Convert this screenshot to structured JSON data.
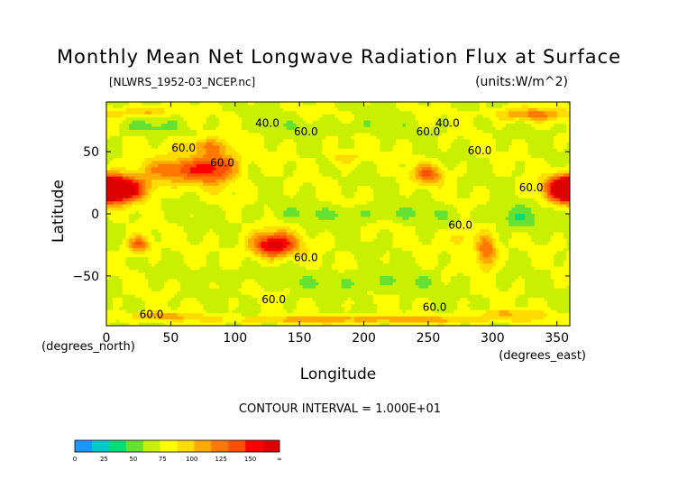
{
  "chart_data": {
    "type": "heatmap",
    "title": "Monthly Mean Net Longwave Radiation Flux at Surface",
    "file_label": "[NLWRS_1952-03_NCEP.nc]",
    "units_label": "(units:W/m^2)",
    "xlabel": "Longitude",
    "ylabel": "Latitude",
    "x_unit_label": "(degrees_east)",
    "y_unit_label": "(degrees_north)",
    "xlim": [
      0,
      360
    ],
    "ylim": [
      -90,
      90
    ],
    "x_ticks": [
      {
        "value": 0,
        "label": "0"
      },
      {
        "value": 50,
        "label": "50"
      },
      {
        "value": 100,
        "label": "100"
      },
      {
        "value": 150,
        "label": "150"
      },
      {
        "value": 200,
        "label": "200"
      },
      {
        "value": 250,
        "label": "250"
      },
      {
        "value": 300,
        "label": "300"
      },
      {
        "value": 350,
        "label": "350"
      }
    ],
    "y_ticks": [
      {
        "value": 50,
        "label": "50"
      },
      {
        "value": 0,
        "label": "0"
      },
      {
        "value": -50,
        "label": "−50"
      }
    ],
    "contour_interval_text": "CONTOUR INTERVAL = 1.000E+01",
    "contour_labels": [
      {
        "lon": 125,
        "lat": 70,
        "text": "40.0"
      },
      {
        "lon": 265,
        "lat": 70,
        "text": "40.0"
      },
      {
        "lon": 250,
        "lat": 63,
        "text": "60.0"
      },
      {
        "lon": 155,
        "lat": 63,
        "text": "60.0"
      },
      {
        "lon": 60,
        "lat": 50,
        "text": "60.0"
      },
      {
        "lon": 90,
        "lat": 38,
        "text": "60.0"
      },
      {
        "lon": 290,
        "lat": 48,
        "text": "60.0"
      },
      {
        "lon": 330,
        "lat": 18,
        "text": "60.0"
      },
      {
        "lon": 275,
        "lat": -12,
        "text": "60.0"
      },
      {
        "lon": 155,
        "lat": -38,
        "text": "60.0"
      },
      {
        "lon": 130,
        "lat": -72,
        "text": "60.0"
      },
      {
        "lon": 255,
        "lat": -78,
        "text": "60.0"
      },
      {
        "lon": 35,
        "lat": -84,
        "text": "60.0"
      }
    ],
    "colorbar": {
      "levels": [
        0,
        25,
        50,
        75,
        100,
        125,
        150
      ],
      "tick_labels": [
        "0",
        "25",
        "50",
        "75",
        "100",
        "125",
        "150",
        "∞"
      ],
      "colors": [
        "#1e96ff",
        "#00c8c8",
        "#00dc78",
        "#64e132",
        "#c8f000",
        "#ffff00",
        "#ffdc00",
        "#ffaa00",
        "#ff7800",
        "#ff5000",
        "#ff0000",
        "#dc0000"
      ]
    },
    "field": {
      "background": 62,
      "features": [
        {
          "lon": 10,
          "lat": 20,
          "w": 22,
          "h": 10,
          "amp": 95
        },
        {
          "lon": 358,
          "lat": 20,
          "w": 15,
          "h": 10,
          "amp": 90
        },
        {
          "lon": 55,
          "lat": 35,
          "w": 30,
          "h": 10,
          "amp": 45
        },
        {
          "lon": 85,
          "lat": 38,
          "w": 18,
          "h": 14,
          "amp": 55
        },
        {
          "lon": 75,
          "lat": 55,
          "w": 20,
          "h": 6,
          "amp": 30
        },
        {
          "lon": 130,
          "lat": -25,
          "w": 18,
          "h": 10,
          "amp": 85
        },
        {
          "lon": 25,
          "lat": -25,
          "w": 9,
          "h": 7,
          "amp": 55
        },
        {
          "lon": 250,
          "lat": 32,
          "w": 12,
          "h": 8,
          "amp": 50
        },
        {
          "lon": 185,
          "lat": 45,
          "w": 12,
          "h": 6,
          "amp": 25
        },
        {
          "lon": 295,
          "lat": -30,
          "w": 8,
          "h": 14,
          "amp": 55
        },
        {
          "lon": 275,
          "lat": -20,
          "w": 10,
          "h": 8,
          "amp": 25
        },
        {
          "lon": 330,
          "lat": 80,
          "w": 30,
          "h": 5,
          "amp": 40
        },
        {
          "lon": 30,
          "lat": 82,
          "w": 20,
          "h": 4,
          "amp": 30
        },
        {
          "lon": 200,
          "lat": 0,
          "w": 90,
          "h": 6,
          "amp": -12
        },
        {
          "lon": 320,
          "lat": -5,
          "w": 18,
          "h": 10,
          "amp": -20
        },
        {
          "lon": 200,
          "lat": -55,
          "w": 60,
          "h": 8,
          "amp": -12
        },
        {
          "lon": 100,
          "lat": -50,
          "w": 30,
          "h": 6,
          "amp": -10
        },
        {
          "lon": 200,
          "lat": -85,
          "w": 120,
          "h": 3,
          "amp": 35
        },
        {
          "lon": 40,
          "lat": -82,
          "w": 30,
          "h": 3,
          "amp": 30
        },
        {
          "lon": 310,
          "lat": -80,
          "w": 30,
          "h": 3,
          "amp": 25
        },
        {
          "lon": 30,
          "lat": 70,
          "w": 25,
          "h": 6,
          "amp": -15
        },
        {
          "lon": 180,
          "lat": 70,
          "w": 50,
          "h": 6,
          "amp": -10
        }
      ]
    }
  }
}
